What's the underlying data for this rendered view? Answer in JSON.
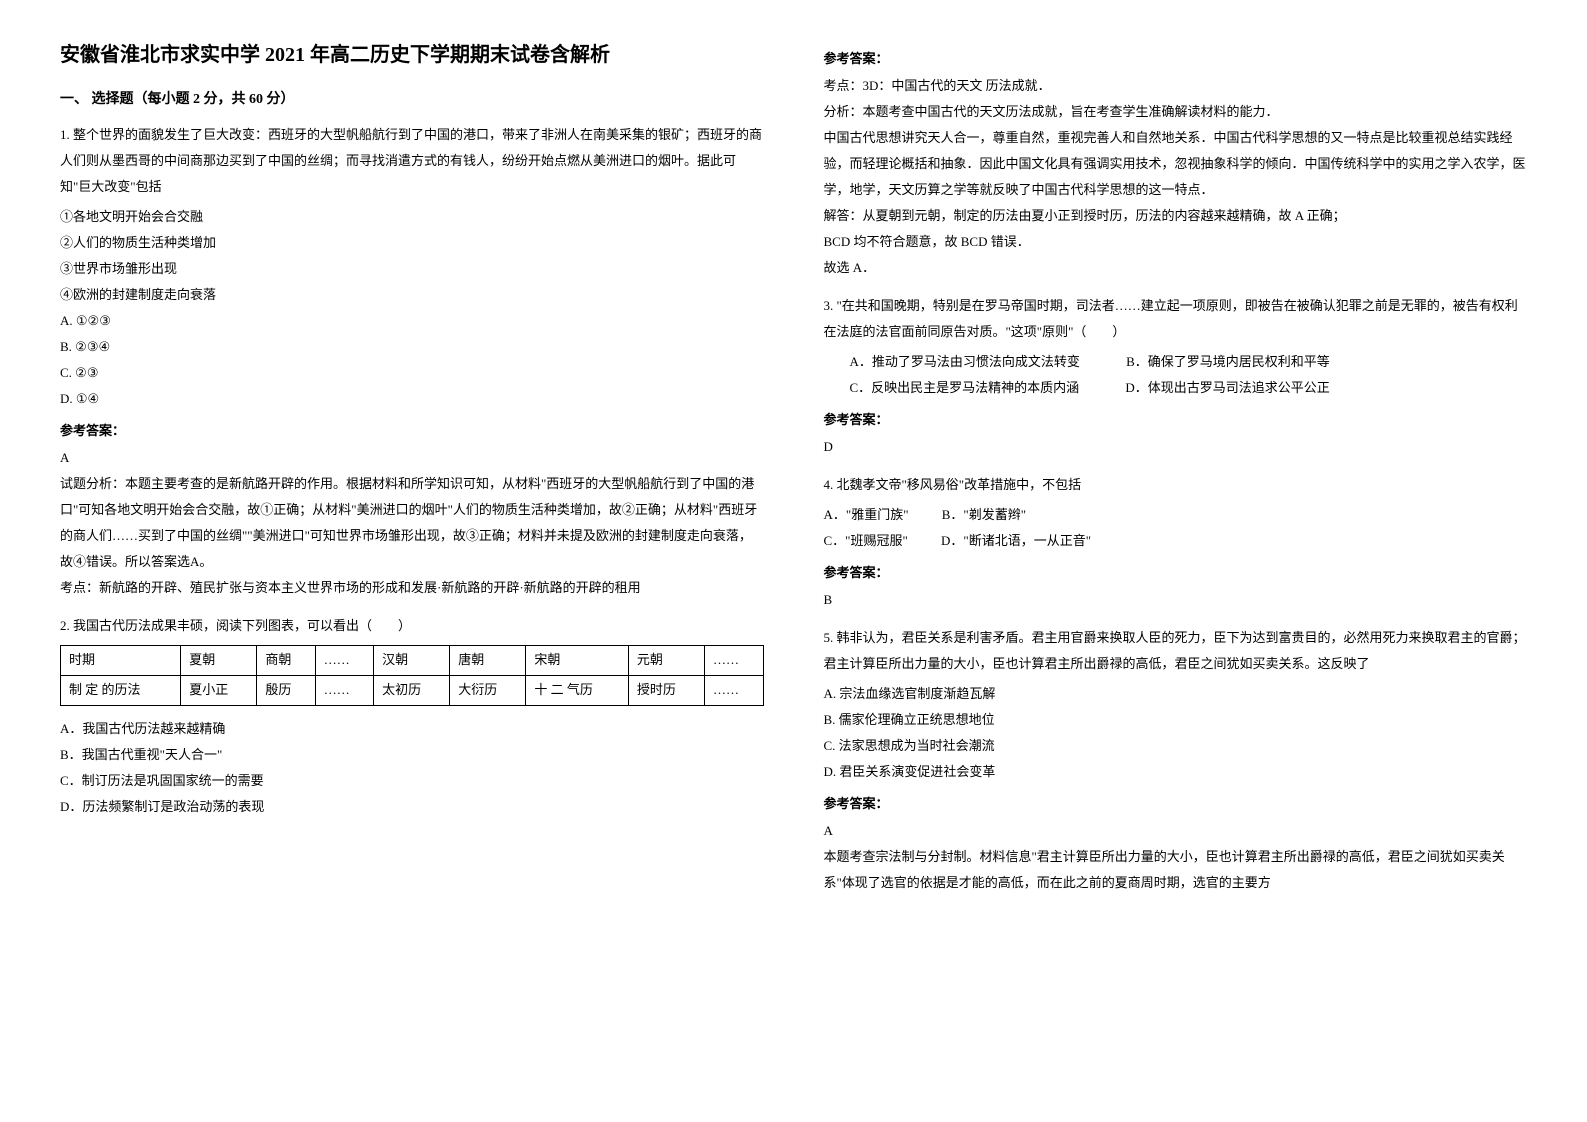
{
  "title": "安徽省淮北市求实中学 2021 年高二历史下学期期末试卷含解析",
  "section1_header": "一、 选择题（每小题 2 分，共 60 分）",
  "q1": {
    "stem": "1. 整个世界的面貌发生了巨大改变：西班牙的大型帆船航行到了中国的港口，带来了非洲人在南美采集的银矿；西班牙的商人们则从墨西哥的中间商那边买到了中国的丝绸；而寻找消遣方式的有钱人，纷纷开始点燃从美洲进口的烟叶。据此可知\"巨大改变\"包括",
    "c1": "①各地文明开始会合交融",
    "c2": "②人们的物质生活种类增加",
    "c3": "③世界市场雏形出现",
    "c4": "④欧洲的封建制度走向衰落",
    "oA": "A. ①②③",
    "oB": "B. ②③④",
    "oC": "C. ②③",
    "oD": "D. ①④",
    "ans_label": "参考答案：",
    "ans": "A",
    "explain": "试题分析：本题主要考查的是新航路开辟的作用。根据材料和所学知识可知，从材料\"西班牙的大型帆船航行到了中国的港口\"可知各地文明开始会合交融，故①正确；从材料\"美洲进口的烟叶\"人们的物质生活种类增加，故②正确；从材料\"西班牙的商人们……买到了中国的丝绸\"\"美洲进口\"可知世界市场雏形出现，故③正确；材料并未提及欧洲的封建制度走向衰落，故④错误。所以答案选A。",
    "kaodian": "考点：新航路的开辟、殖民扩张与资本主义世界市场的形成和发展·新航路的开辟·新航路的开辟的租用"
  },
  "q2": {
    "stem": "2. 我国古代历法成果丰硕，阅读下列图表，可以看出（　　）",
    "table": {
      "r1": [
        "时期",
        "夏朝",
        "商朝",
        "……",
        "汉朝",
        "唐朝",
        "宋朝",
        "元朝",
        "……"
      ],
      "r2": [
        "制 定 的历法",
        "夏小正",
        "殷历",
        "……",
        "太初历",
        "大衍历",
        "十 二 气历",
        "授时历",
        "……"
      ]
    },
    "oA": "A．我国古代历法越来越精确",
    "oB": "B．我国古代重视\"天人合一\"",
    "oC": "C．制订历法是巩固国家统一的需要",
    "oD": "D．历法频繁制订是政治动荡的表现",
    "ans_label": "参考答案：",
    "kaodian": "考点：3D：中国古代的天文 历法成就．",
    "fenxi": "分析：本题考查中国古代的天文历法成就，旨在考查学生准确解读材料的能力．",
    "p1": "中国古代思想讲究天人合一，尊重自然，重视完善人和自然地关系．中国古代科学思想的又一特点是比较重视总结实践经验，而轻理论概括和抽象．因此中国文化具有强调实用技术，忽视抽象科学的倾向．中国传统科学中的实用之学入农学，医学，地学，天文历算之学等就反映了中国古代科学思想的这一特点．",
    "jieda": "解答：从夏朝到元朝，制定的历法由夏小正到授时历，历法的内容越来越精确，故 A 正确；",
    "p2": "BCD 均不符合题意，故 BCD 错误．",
    "p3": "故选 A．"
  },
  "q3": {
    "stem": "3. \"在共和国晚期，特别是在罗马帝国时期，司法者……建立起一项原则，即被告在被确认犯罪之前是无罪的，被告有权利在法庭的法官面前同原告对质。\"这项\"原则\"（　　）",
    "oA": "A．推动了罗马法由习惯法向成文法转变",
    "oB": "B．确保了罗马境内居民权利和平等",
    "oC": "C．反映出民主是罗马法精神的本质内涵",
    "oD": "D．体现出古罗马司法追求公平公正",
    "ans_label": "参考答案：",
    "ans": "D"
  },
  "q4": {
    "stem": "4. 北魏孝文帝\"移风易俗\"改革措施中，不包括",
    "oA": "A．\"雅重门族\"",
    "oB": "B．\"剃发蓄辫\"",
    "oC": "C．\"班赐冠服\"",
    "oD": "D．\"断诸北语，一从正音\"",
    "ans_label": "参考答案：",
    "ans": "B"
  },
  "q5": {
    "stem": "5. 韩非认为，君臣关系是利害矛盾。君主用官爵来换取人臣的死力，臣下为达到富贵目的，必然用死力来换取君主的官爵；君主计算臣所出力量的大小，臣也计算君主所出爵禄的高低，君臣之间犹如买卖关系。这反映了",
    "oA": "A. 宗法血缘选官制度渐趋瓦解",
    "oB": "B. 儒家伦理确立正统思想地位",
    "oC": "C. 法家思想成为当时社会潮流",
    "oD": "D. 君臣关系演变促进社会变革",
    "ans_label": "参考答案：",
    "ans": "A",
    "explain": "本题考查宗法制与分封制。材料信息\"君主计算臣所出力量的大小，臣也计算君主所出爵禄的高低，君臣之间犹如买卖关系\"体现了选官的依据是才能的高低，而在此之前的夏商周时期，选官的主要方"
  }
}
